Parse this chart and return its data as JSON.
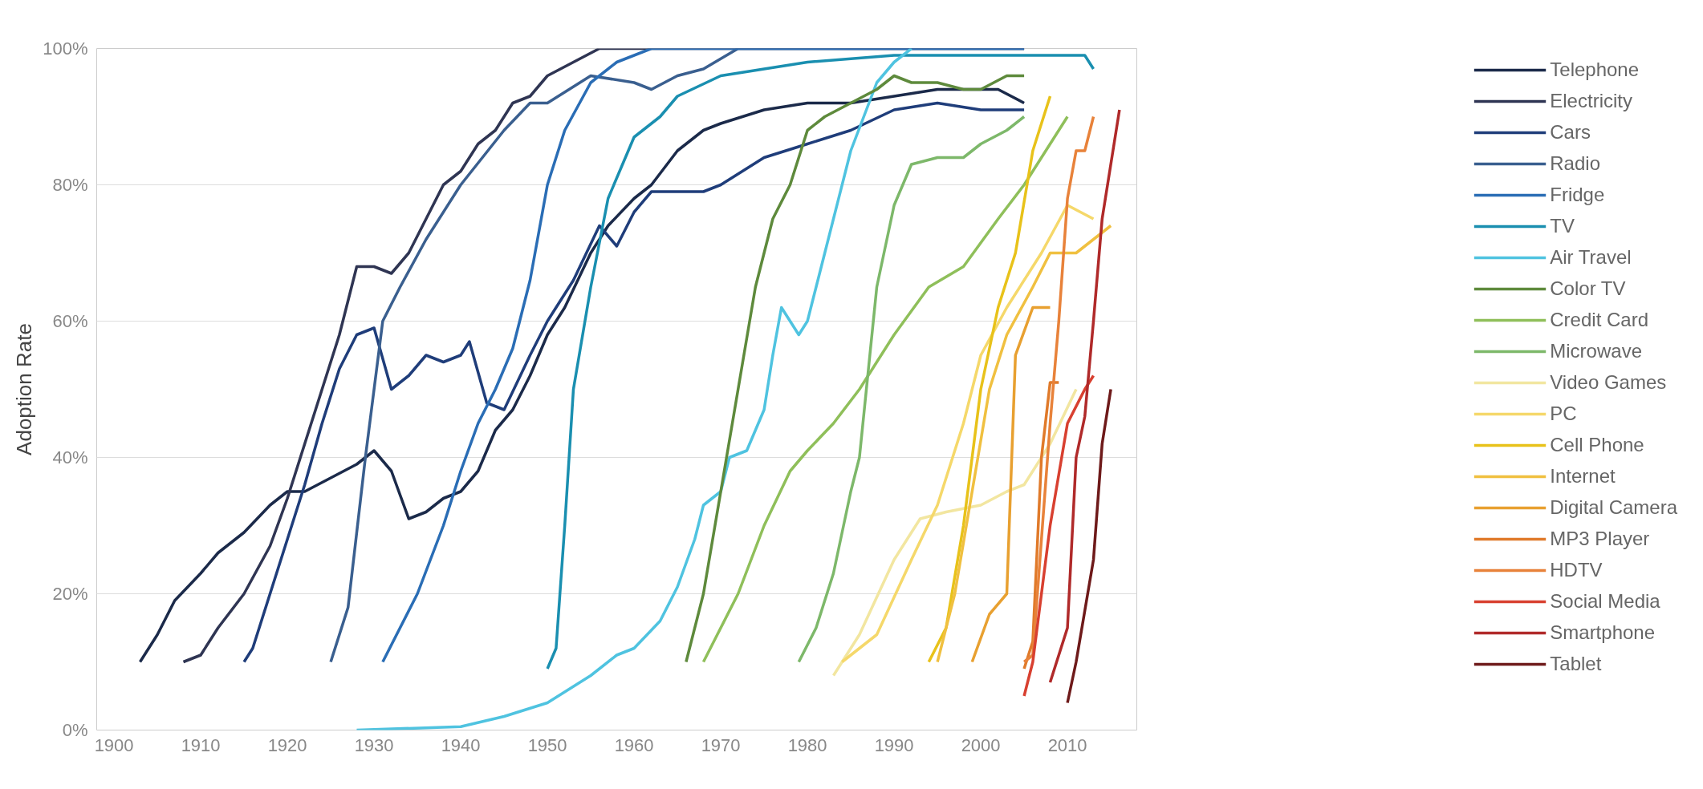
{
  "chart_data": {
    "type": "line",
    "ylabel": "Adoption Rate",
    "xlim": [
      1898,
      2018
    ],
    "ylim": [
      0,
      100
    ],
    "xticks": [
      1900,
      1910,
      1920,
      1930,
      1940,
      1950,
      1960,
      1970,
      1980,
      1990,
      2000,
      2010
    ],
    "yticks": [
      {
        "value": 0,
        "label": "0%"
      },
      {
        "value": 20,
        "label": "20%"
      },
      {
        "value": 40,
        "label": "40%"
      },
      {
        "value": 60,
        "label": "60%"
      },
      {
        "value": 80,
        "label": "80%"
      },
      {
        "value": 100,
        "label": "100%"
      }
    ],
    "grid": "y",
    "legend": "right",
    "line_style": "solid",
    "marker": "none",
    "series": [
      {
        "name": "Telephone",
        "color": "#1b2a4a",
        "x": [
          1903,
          1905,
          1907,
          1910,
          1912,
          1915,
          1918,
          1920,
          1922,
          1925,
          1928,
          1930,
          1932,
          1934,
          1936,
          1938,
          1940,
          1942,
          1944,
          1946,
          1948,
          1950,
          1952,
          1955,
          1957,
          1960,
          1962,
          1965,
          1968,
          1970,
          1975,
          1980,
          1985,
          1990,
          1995,
          2002,
          2005
        ],
        "values": [
          10,
          14,
          19,
          23,
          26,
          29,
          33,
          35,
          35,
          37,
          39,
          41,
          38,
          31,
          32,
          34,
          35,
          38,
          44,
          47,
          52,
          58,
          62,
          70,
          74,
          78,
          80,
          85,
          88,
          89,
          91,
          92,
          92,
          93,
          94,
          94,
          92
        ]
      },
      {
        "name": "Electricity",
        "color": "#2f3553",
        "x": [
          1908,
          1910,
          1912,
          1915,
          1918,
          1920,
          1922,
          1924,
          1926,
          1928,
          1930,
          1932,
          1934,
          1936,
          1938,
          1940,
          1942,
          1944,
          1946,
          1948,
          1950,
          1953,
          1956,
          2005
        ],
        "values": [
          10,
          11,
          15,
          20,
          27,
          34,
          42,
          50,
          58,
          68,
          68,
          67,
          70,
          75,
          80,
          82,
          86,
          88,
          92,
          93,
          96,
          98,
          100,
          100
        ]
      },
      {
        "name": "Cars",
        "color": "#1f3d7a",
        "x": [
          1915,
          1916,
          1918,
          1920,
          1922,
          1924,
          1926,
          1928,
          1930,
          1932,
          1934,
          1936,
          1938,
          1940,
          1941,
          1943,
          1945,
          1948,
          1950,
          1953,
          1956,
          1958,
          1960,
          1962,
          1965,
          1968,
          1970,
          1975,
          1980,
          1985,
          1990,
          1995,
          2000,
          2005
        ],
        "values": [
          10,
          12,
          20,
          28,
          36,
          45,
          53,
          58,
          59,
          50,
          52,
          55,
          54,
          55,
          57,
          48,
          47,
          55,
          60,
          66,
          74,
          71,
          76,
          79,
          79,
          79,
          80,
          84,
          86,
          88,
          91,
          92,
          91,
          91
        ]
      },
      {
        "name": "Radio",
        "color": "#3a5f8f",
        "x": [
          1925,
          1927,
          1929,
          1931,
          1933,
          1936,
          1940,
          1945,
          1948,
          1950,
          1955,
          1960,
          1962,
          1965,
          1968,
          1972,
          2005
        ],
        "values": [
          10,
          18,
          40,
          60,
          65,
          72,
          80,
          88,
          92,
          92,
          96,
          95,
          94,
          96,
          97,
          100,
          100
        ]
      },
      {
        "name": "Fridge",
        "color": "#2a6db5",
        "x": [
          1931,
          1935,
          1938,
          1940,
          1942,
          1944,
          1946,
          1948,
          1950,
          1952,
          1955,
          1958,
          1962,
          2005
        ],
        "values": [
          10,
          20,
          30,
          38,
          45,
          50,
          56,
          66,
          80,
          88,
          95,
          98,
          100,
          100
        ]
      },
      {
        "name": "TV",
        "color": "#1a8fb0",
        "x": [
          1950,
          1951,
          1952,
          1953,
          1955,
          1957,
          1960,
          1963,
          1965,
          1970,
          1975,
          1980,
          1990,
          2005,
          2010,
          2012,
          2013
        ],
        "values": [
          9,
          12,
          30,
          50,
          65,
          78,
          87,
          90,
          93,
          96,
          97,
          98,
          99,
          99,
          99,
          99,
          97
        ]
      },
      {
        "name": "Air Travel",
        "color": "#4fc3e0",
        "x": [
          1928,
          1940,
          1945,
          1950,
          1955,
          1958,
          1960,
          1963,
          1965,
          1967,
          1968,
          1970,
          1971,
          1973,
          1975,
          1976,
          1977,
          1979,
          1980,
          1982,
          1985,
          1988,
          1990,
          1992
        ],
        "values": [
          0,
          0.5,
          2,
          4,
          8,
          11,
          12,
          16,
          21,
          28,
          33,
          35,
          40,
          41,
          47,
          55,
          62,
          58,
          60,
          70,
          85,
          95,
          98,
          100
        ]
      },
      {
        "name": "Color TV",
        "color": "#5e8a3c",
        "x": [
          1966,
          1968,
          1970,
          1972,
          1974,
          1976,
          1978,
          1980,
          1982,
          1985,
          1988,
          1990,
          1992,
          1995,
          1998,
          2000,
          2003,
          2005
        ],
        "values": [
          10,
          20,
          35,
          50,
          65,
          75,
          80,
          88,
          90,
          92,
          94,
          96,
          95,
          95,
          94,
          94,
          96,
          96
        ]
      },
      {
        "name": "Credit Card",
        "color": "#8fbf5a",
        "x": [
          1968,
          1972,
          1975,
          1978,
          1980,
          1983,
          1986,
          1990,
          1994,
          1998,
          2002,
          2005,
          2010
        ],
        "values": [
          10,
          20,
          30,
          38,
          41,
          45,
          50,
          58,
          65,
          68,
          75,
          80,
          90
        ]
      },
      {
        "name": "Microwave",
        "color": "#7db86a",
        "x": [
          1979,
          1981,
          1983,
          1985,
          1986,
          1988,
          1990,
          1992,
          1995,
          1998,
          2000,
          2003,
          2005
        ],
        "values": [
          10,
          15,
          23,
          35,
          40,
          65,
          77,
          83,
          84,
          84,
          86,
          88,
          90
        ]
      },
      {
        "name": "Video Games",
        "color": "#f2e6a0",
        "x": [
          1983,
          1986,
          1990,
          1993,
          1996,
          2000,
          2003,
          2005,
          2008,
          2011
        ],
        "values": [
          8,
          14,
          25,
          31,
          32,
          33,
          35,
          36,
          42,
          50
        ]
      },
      {
        "name": "PC",
        "color": "#f5d86a",
        "x": [
          1984,
          1988,
          1992,
          1995,
          1998,
          2000,
          2003,
          2007,
          2010,
          2013
        ],
        "values": [
          10,
          14,
          25,
          33,
          45,
          55,
          62,
          70,
          77,
          75
        ]
      },
      {
        "name": "Cell Phone",
        "color": "#e8c21a",
        "x": [
          1994,
          1996,
          1998,
          2000,
          2002,
          2004,
          2006,
          2008
        ],
        "values": [
          10,
          15,
          30,
          50,
          62,
          70,
          85,
          93
        ]
      },
      {
        "name": "Internet",
        "color": "#f0c040",
        "x": [
          1995,
          1997,
          1999,
          2001,
          2003,
          2006,
          2008,
          2011,
          2015
        ],
        "values": [
          10,
          20,
          35,
          50,
          58,
          65,
          70,
          70,
          74
        ]
      },
      {
        "name": "Digital Camera",
        "color": "#e8a030",
        "x": [
          1999,
          2001,
          2003,
          2004,
          2006,
          2008
        ],
        "values": [
          10,
          17,
          20,
          55,
          62,
          62
        ]
      },
      {
        "name": "MP3 Player",
        "color": "#e07a2a",
        "x": [
          2005,
          2006,
          2007,
          2008,
          2009
        ],
        "values": [
          9,
          13,
          40,
          51,
          51
        ]
      },
      {
        "name": "HDTV",
        "color": "#e8823a",
        "x": [
          2005,
          2006,
          2007,
          2008,
          2009,
          2010,
          2011,
          2012,
          2013
        ],
        "values": [
          10,
          11,
          28,
          45,
          60,
          78,
          85,
          85,
          90
        ]
      },
      {
        "name": "Social Media",
        "color": "#d84030",
        "x": [
          2005,
          2006,
          2008,
          2010,
          2012,
          2013
        ],
        "values": [
          5,
          10,
          30,
          45,
          50,
          52
        ]
      },
      {
        "name": "Smartphone",
        "color": "#b02a2a",
        "x": [
          2008,
          2010,
          2011,
          2012,
          2013,
          2014,
          2016
        ],
        "values": [
          7,
          15,
          40,
          46,
          60,
          75,
          91
        ]
      },
      {
        "name": "Tablet",
        "color": "#6e1a1a",
        "x": [
          2010,
          2011,
          2013,
          2014,
          2015
        ],
        "values": [
          4,
          10,
          25,
          42,
          50
        ]
      }
    ]
  }
}
